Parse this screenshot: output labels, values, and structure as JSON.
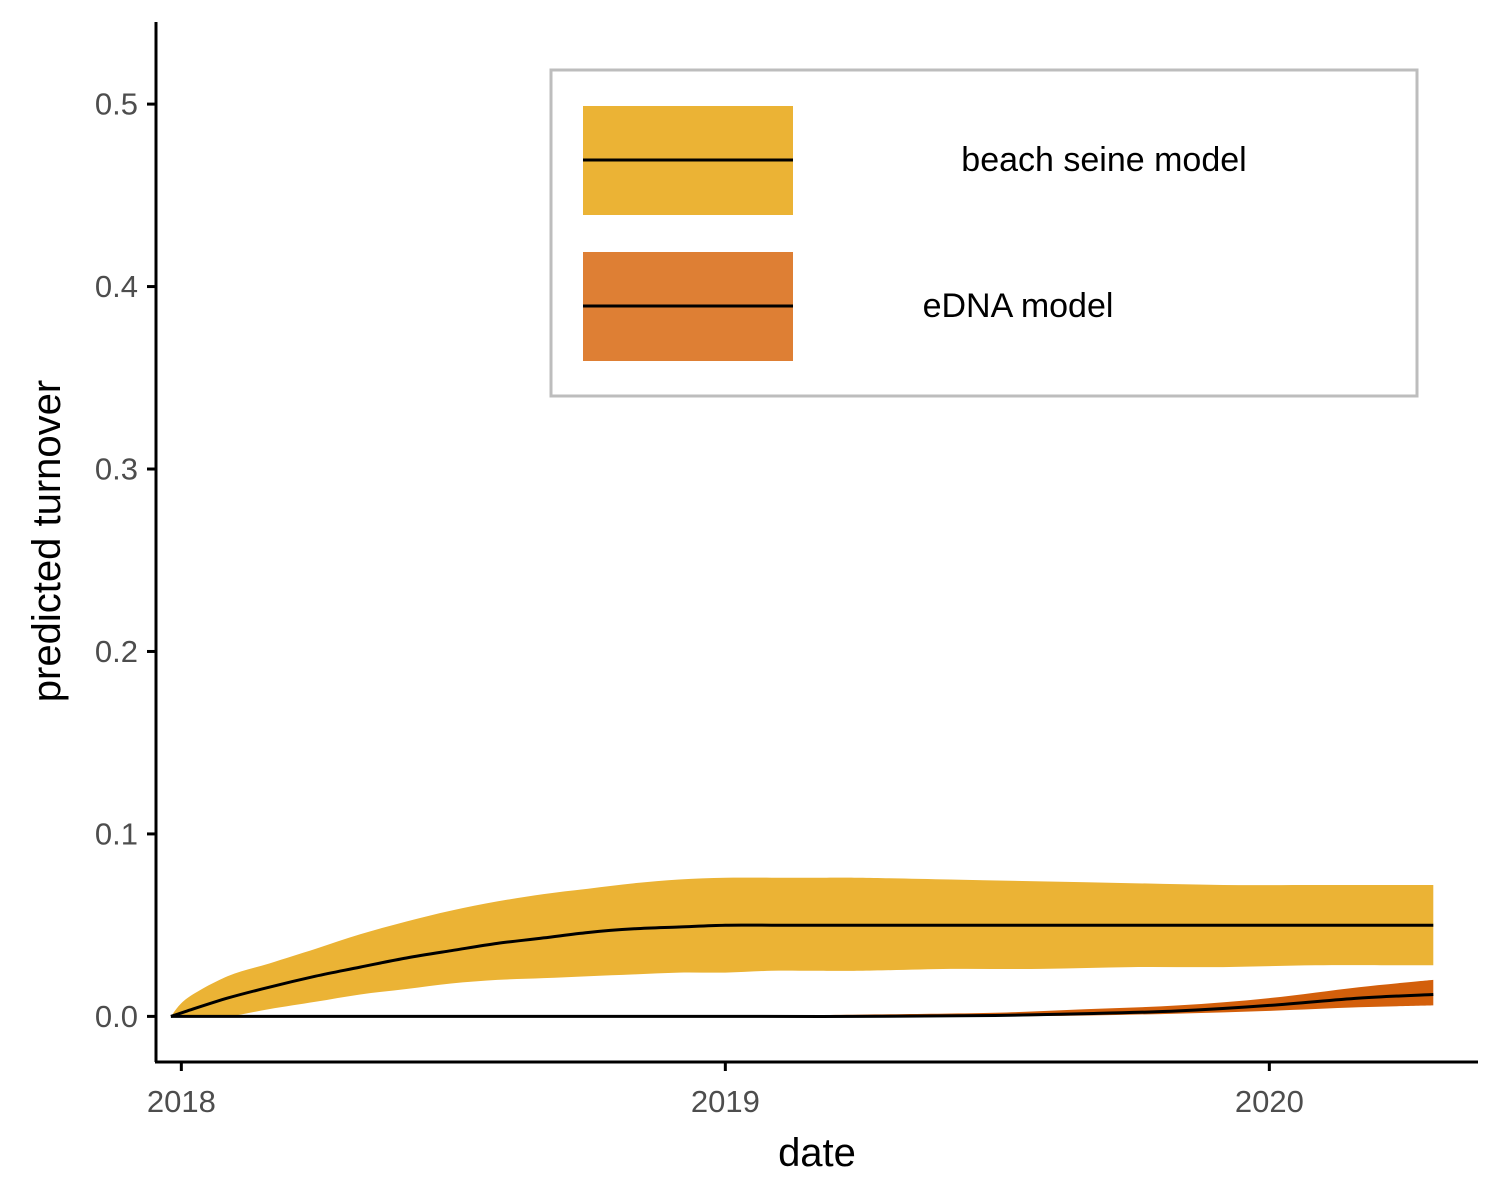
{
  "chart_data": {
    "type": "area",
    "xlabel": "date",
    "ylabel": "predicted turnover",
    "xlim": [
      "2017-12-15",
      "2020-05-20"
    ],
    "ylim": [
      -0.025,
      0.545
    ],
    "x_ticks": [
      {
        "value": "2018-01-01",
        "label": "2018"
      },
      {
        "value": "2019-01-01",
        "label": "2019"
      },
      {
        "value": "2020-01-01",
        "label": "2020"
      }
    ],
    "y_ticks": [
      {
        "value": 0.0,
        "label": "0.0"
      },
      {
        "value": 0.1,
        "label": "0.1"
      },
      {
        "value": 0.2,
        "label": "0.2"
      },
      {
        "value": 0.3,
        "label": "0.3"
      },
      {
        "value": 0.4,
        "label": "0.4"
      },
      {
        "value": 0.5,
        "label": "0.5"
      }
    ],
    "grid": false,
    "legend_position": "top-right",
    "series": [
      {
        "name": "beach seine model",
        "color": "#ebb335",
        "x": [
          "2017-12-25",
          "2018-01-05",
          "2018-02-01",
          "2018-03-01",
          "2018-04-01",
          "2018-05-01",
          "2018-06-01",
          "2018-07-01",
          "2018-08-01",
          "2018-09-01",
          "2018-10-01",
          "2018-11-01",
          "2018-12-01",
          "2019-01-01",
          "2019-02-01",
          "2019-03-01",
          "2019-04-01",
          "2019-06-01",
          "2019-08-01",
          "2019-10-01",
          "2019-12-01",
          "2020-02-01",
          "2020-04-01",
          "2020-04-20"
        ],
        "y": [
          0.0,
          0.003,
          0.01,
          0.016,
          0.022,
          0.027,
          0.032,
          0.036,
          0.04,
          0.043,
          0.046,
          0.048,
          0.049,
          0.05,
          0.05,
          0.05,
          0.05,
          0.05,
          0.05,
          0.05,
          0.05,
          0.05,
          0.05,
          0.05
        ],
        "lower": [
          0.0,
          0.0,
          0.0,
          0.004,
          0.008,
          0.012,
          0.015,
          0.018,
          0.02,
          0.021,
          0.022,
          0.023,
          0.024,
          0.024,
          0.025,
          0.025,
          0.025,
          0.026,
          0.026,
          0.027,
          0.027,
          0.028,
          0.028,
          0.028
        ],
        "upper": [
          0.0,
          0.01,
          0.022,
          0.029,
          0.037,
          0.045,
          0.052,
          0.058,
          0.063,
          0.067,
          0.07,
          0.073,
          0.075,
          0.076,
          0.076,
          0.076,
          0.076,
          0.075,
          0.074,
          0.073,
          0.072,
          0.072,
          0.072,
          0.072
        ]
      },
      {
        "name": "eDNA model",
        "color": "#de7f34",
        "band_color": "#d35f0b",
        "x": [
          "2017-12-25",
          "2018-06-01",
          "2019-01-01",
          "2019-04-01",
          "2019-07-01",
          "2019-09-01",
          "2019-11-01",
          "2020-01-01",
          "2020-03-01",
          "2020-04-20"
        ],
        "y": [
          0.0,
          0.0,
          0.0,
          0.0,
          0.0005,
          0.0015,
          0.003,
          0.006,
          0.01,
          0.012
        ],
        "lower": [
          0.0,
          0.0,
          0.0,
          0.0,
          0.0,
          0.0005,
          0.0015,
          0.003,
          0.005,
          0.006
        ],
        "upper": [
          0.0,
          0.0,
          0.0003,
          0.001,
          0.002,
          0.004,
          0.006,
          0.01,
          0.016,
          0.02
        ]
      }
    ]
  }
}
